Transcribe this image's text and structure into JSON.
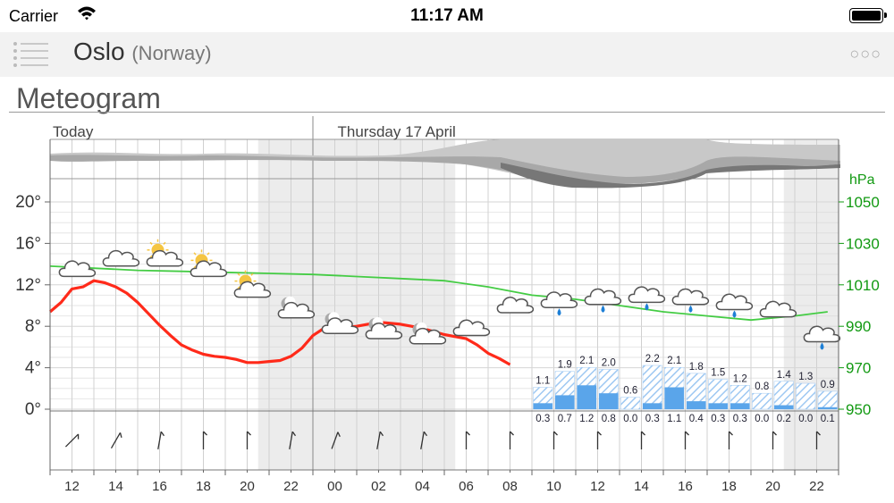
{
  "status_bar": {
    "carrier": "Carrier",
    "time": "11:17 AM",
    "wifi_icon": "wifi-icon",
    "battery_icon": "battery-icon"
  },
  "nav": {
    "menu_icon": "list-menu-icon",
    "city": "Oslo",
    "country": "(Norway)",
    "more_icon": "more-dots-icon",
    "more_glyph": "○○○"
  },
  "page": {
    "heading": "Meteogram"
  },
  "colors": {
    "temperature": "#ff2a1a",
    "pressure": "#44cc44",
    "precip": "#5aa5ea",
    "precip_hatch": "#9ec8f2",
    "pressure_axis": "#119911",
    "night_shade": "#ececec"
  },
  "chart_data": {
    "type": "line",
    "day_labels": [
      {
        "hour_offset": 0,
        "label": "Today"
      },
      {
        "hour_offset": 13,
        "label": "Thursday 17 April"
      }
    ],
    "x_hours": [
      12,
      13,
      14,
      15,
      16,
      17,
      18,
      19,
      20,
      21,
      22,
      23,
      0,
      1,
      2,
      3,
      4,
      5,
      6,
      7,
      8,
      9,
      10,
      11,
      12,
      13,
      14,
      15,
      16,
      17,
      18,
      19,
      20,
      21,
      22,
      23
    ],
    "x_tick_labels": [
      "12",
      "14",
      "16",
      "18",
      "20",
      "22",
      "00",
      "02",
      "04",
      "06",
      "08",
      "10",
      "12",
      "14",
      "16",
      "18",
      "20",
      "22"
    ],
    "night_periods": [
      [
        9.5,
        18.5
      ],
      [
        33.5,
        36
      ]
    ],
    "temperature": {
      "unit": "°",
      "y_ticks": [
        0,
        4,
        8,
        12,
        16,
        20
      ],
      "y_tick_labels": [
        "0°",
        "4°",
        "8°",
        "12°",
        "16°",
        "20°"
      ],
      "ylim": [
        0,
        20
      ],
      "values": [
        9.4,
        10.3,
        11.6,
        11.8,
        12.4,
        12.2,
        11.8,
        11.2,
        10.3,
        9.2,
        8.1,
        7.1,
        6.2,
        5.7,
        5.3,
        5.1,
        5.0,
        4.8,
        4.5,
        4.5,
        4.6,
        4.7,
        5.1,
        5.9,
        7.1,
        7.8,
        7.8,
        7.9,
        8.0,
        8.2,
        8.4,
        8.3,
        8.2,
        8.0,
        7.8,
        7.5,
        7.2,
        7.0,
        6.8,
        6.2,
        5.4,
        4.9,
        4.3
      ]
    },
    "temperature_x": [
      0,
      0.5,
      1,
      1.5,
      2,
      2.5,
      3,
      3.5,
      4,
      4.5,
      5,
      5.5,
      6,
      6.5,
      7,
      7.5,
      8,
      8.5,
      9,
      9.5,
      10,
      10.5,
      11,
      11.5,
      12,
      12.5,
      13,
      13.5,
      14,
      14.5,
      15,
      15.5,
      16,
      16.5,
      17,
      17.5,
      18,
      18.5,
      19,
      19.5,
      20,
      20.5,
      21
    ],
    "pressure": {
      "unit": "hPa",
      "y_ticks": [
        950,
        970,
        990,
        1010,
        1030,
        1050
      ],
      "y_tick_labels": [
        "950",
        "970",
        "990",
        "1010",
        "1030",
        "1050"
      ],
      "ylim": [
        950,
        1050
      ],
      "x": [
        0,
        2,
        4,
        6,
        8,
        10,
        12,
        14,
        16,
        18,
        20,
        22,
        24,
        26,
        28,
        30,
        32,
        34,
        35.5
      ],
      "values": [
        1019,
        1018,
        1017,
        1016.5,
        1016,
        1015.5,
        1015,
        1014,
        1013,
        1012,
        1009,
        1005,
        1003,
        1000,
        997,
        995,
        993,
        995,
        997
      ]
    },
    "precipitation": {
      "hours": [
        22,
        23,
        24,
        25,
        26,
        27,
        28,
        29,
        30,
        31,
        32,
        33,
        34,
        35
      ],
      "max": [
        1.1,
        1.9,
        2.1,
        2.0,
        0.6,
        2.2,
        2.1,
        1.8,
        1.5,
        1.2,
        0.8,
        1.4,
        1.3,
        0.9
      ],
      "min": [
        0.3,
        0.7,
        1.2,
        0.8,
        0.0,
        0.3,
        1.1,
        0.4,
        0.3,
        0.3,
        0.0,
        0.2,
        0.0,
        0.1
      ],
      "max_labels": [
        "1.1",
        "1.9",
        "2.1",
        "2.0",
        "0.6",
        "2.2",
        "2.1",
        "1.8",
        "1.5",
        "1.2",
        "0.8",
        "1.4",
        "1.3",
        "0.9"
      ],
      "min_labels": [
        "0.3",
        "0.7",
        "1.2",
        "0.8",
        "0.0",
        "0.3",
        "1.1",
        "0.4",
        "0.3",
        "0.3",
        "0.0",
        "0.2",
        "0.0",
        "0.1"
      ]
    },
    "weather_symbols": [
      {
        "hour": 1,
        "icon": "cloud-icon",
        "temp": 13.5
      },
      {
        "hour": 3,
        "icon": "cloud-icon",
        "temp": 14.5
      },
      {
        "hour": 5,
        "icon": "partly-sunny-icon",
        "temp": 14.5
      },
      {
        "hour": 7,
        "icon": "partly-sunny-icon",
        "temp": 13.5
      },
      {
        "hour": 9,
        "icon": "partly-sunny-icon",
        "temp": 11.5
      },
      {
        "hour": 11,
        "icon": "cloud-moon-icon",
        "temp": 9.5
      },
      {
        "hour": 13,
        "icon": "cloud-moon-icon",
        "temp": 8.0
      },
      {
        "hour": 15,
        "icon": "cloud-moon-icon",
        "temp": 7.5
      },
      {
        "hour": 17,
        "icon": "cloud-moon-icon",
        "temp": 7.0
      },
      {
        "hour": 19,
        "icon": "cloud-icon",
        "temp": 7.8
      },
      {
        "hour": 21,
        "icon": "cloud-icon",
        "temp": 10.0
      },
      {
        "hour": 23,
        "icon": "rain-cloud-icon",
        "temp": 10.5
      },
      {
        "hour": 25,
        "icon": "rain-cloud-icon",
        "temp": 10.8
      },
      {
        "hour": 27,
        "icon": "rain-cloud-icon",
        "temp": 11.0
      },
      {
        "hour": 29,
        "icon": "rain-cloud-icon",
        "temp": 10.8
      },
      {
        "hour": 31,
        "icon": "rain-cloud-icon",
        "temp": 10.3
      },
      {
        "hour": 33,
        "icon": "cloud-icon",
        "temp": 9.6
      },
      {
        "hour": 35,
        "icon": "rain-cloud-icon",
        "temp": 7.2
      }
    ],
    "wind_directions_deg": [
      225,
      200,
      210,
      190,
      190,
      190,
      180,
      180,
      180,
      180,
      190,
      200,
      200,
      200,
      190,
      190,
      190,
      180,
      180,
      180,
      180,
      180,
      180,
      180,
      180,
      180,
      180,
      180,
      180,
      180,
      180,
      180,
      180,
      180,
      180,
      260
    ],
    "wind_icon": "wind-barb-icon",
    "cloud_cover_icon": "cloud-layers-icon"
  }
}
